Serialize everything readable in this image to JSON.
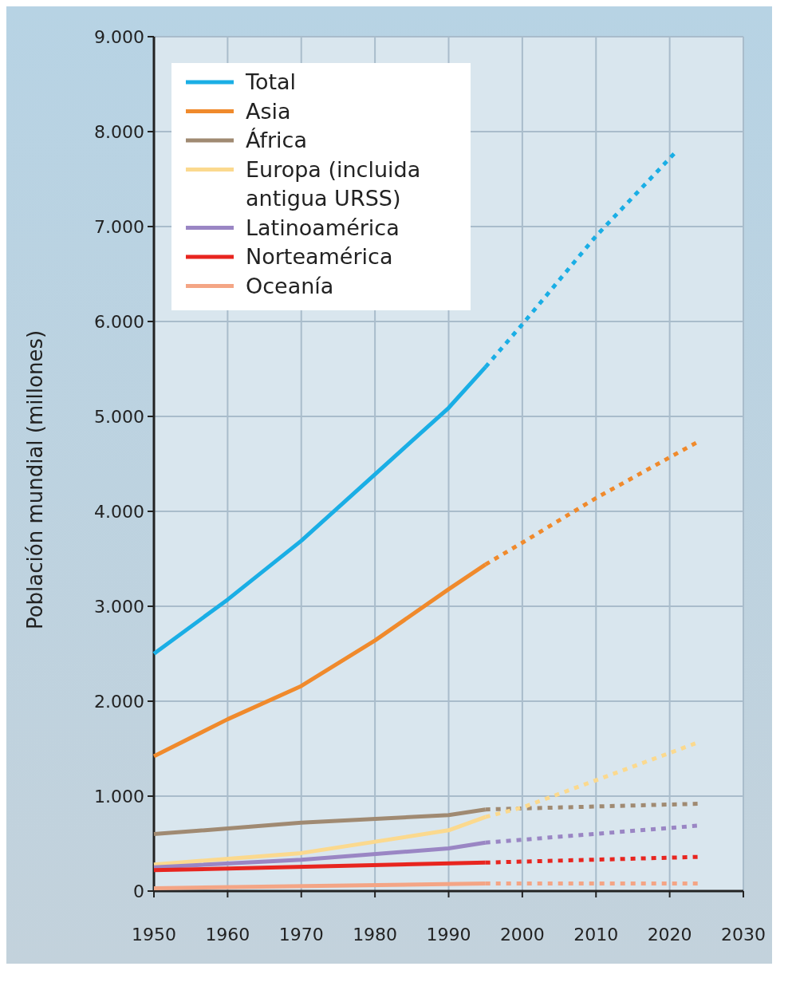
{
  "chart_data": {
    "type": "line",
    "ylabel": "Población mundial (millones)",
    "xlim": [
      1950,
      2030
    ],
    "xticks": [
      1950,
      1960,
      1970,
      1980,
      1990,
      2000,
      2010,
      2020,
      2030
    ],
    "ylim": [
      0,
      9000
    ],
    "yticks": [
      {
        "value": 0,
        "label": "0"
      },
      {
        "value": 1000,
        "label": "1.000"
      },
      {
        "value": 2000,
        "label": "2.000"
      },
      {
        "value": 3000,
        "label": "3.000"
      },
      {
        "value": 4000,
        "label": "4.000"
      },
      {
        "value": 5000,
        "label": "5.000"
      },
      {
        "value": 6000,
        "label": "6.000"
      },
      {
        "value": 7000,
        "label": "7.000"
      },
      {
        "value": 8000,
        "label": "8.000"
      },
      {
        "value": 9000,
        "label": "9.000"
      }
    ],
    "grid": true,
    "legend": "top left",
    "series": [
      {
        "name": "Total",
        "color": "#1aaee5",
        "line_style": "solid",
        "x": [
          1950,
          1960,
          1970,
          1980,
          1990,
          1995
        ],
        "values": [
          2500,
          3070,
          3690,
          4390,
          5090,
          5520
        ]
      },
      {
        "name": "Asia",
        "color": "#f08a2c",
        "line_style": "solid",
        "x": [
          1950,
          1960,
          1970,
          1980,
          1990,
          1995
        ],
        "values": [
          1420,
          1810,
          2160,
          2640,
          3180,
          3440
        ]
      },
      {
        "name": "África",
        "color": "#a08a72",
        "line_style": "solid",
        "x": [
          1950,
          1970,
          1990,
          1995
        ],
        "values": [
          600,
          720,
          800,
          860
        ]
      },
      {
        "name": "Europa (incluida antigua URSS)",
        "color": "#fbd98e",
        "line_style": "solid",
        "x": [
          1950,
          1970,
          1990,
          1995
        ],
        "values": [
          280,
          400,
          640,
          780
        ]
      },
      {
        "name": "Latinoamérica",
        "color": "#9a86c4",
        "line_style": "solid",
        "x": [
          1950,
          1970,
          1990,
          1995
        ],
        "values": [
          250,
          330,
          450,
          510
        ]
      },
      {
        "name": "Norteamérica",
        "color": "#e8251f",
        "line_style": "solid",
        "x": [
          1950,
          1995
        ],
        "values": [
          220,
          300
        ]
      },
      {
        "name": "Oceanía",
        "color": "#f4a585",
        "line_style": "solid",
        "x": [
          1950,
          1995
        ],
        "values": [
          30,
          80
        ]
      },
      {
        "color": "#1aaee5",
        "line_style": "dotted",
        "x": [
          1995,
          2000,
          2010,
          2021
        ],
        "values": [
          5520,
          5970,
          6900,
          7800
        ]
      },
      {
        "color": "#f08a2c",
        "line_style": "dotted",
        "x": [
          1995,
          2000,
          2010,
          2024
        ],
        "values": [
          3440,
          3670,
          4140,
          4740
        ]
      },
      {
        "color": "#a08a72",
        "line_style": "dotted",
        "x": [
          1995,
          2024
        ],
        "values": [
          860,
          920
        ]
      },
      {
        "color": "#fbd98e",
        "line_style": "dotted",
        "x": [
          1995,
          2000,
          2024
        ],
        "values": [
          780,
          880,
          1570
        ]
      },
      {
        "color": "#9a86c4",
        "line_style": "dotted",
        "x": [
          1995,
          2024
        ],
        "values": [
          510,
          690
        ]
      },
      {
        "color": "#e8251f",
        "line_style": "dotted",
        "x": [
          1995,
          2024
        ],
        "values": [
          300,
          360
        ]
      },
      {
        "color": "#f4a585",
        "line_style": "dotted",
        "x": [
          1995,
          2024
        ],
        "values": [
          80,
          80
        ]
      }
    ]
  }
}
